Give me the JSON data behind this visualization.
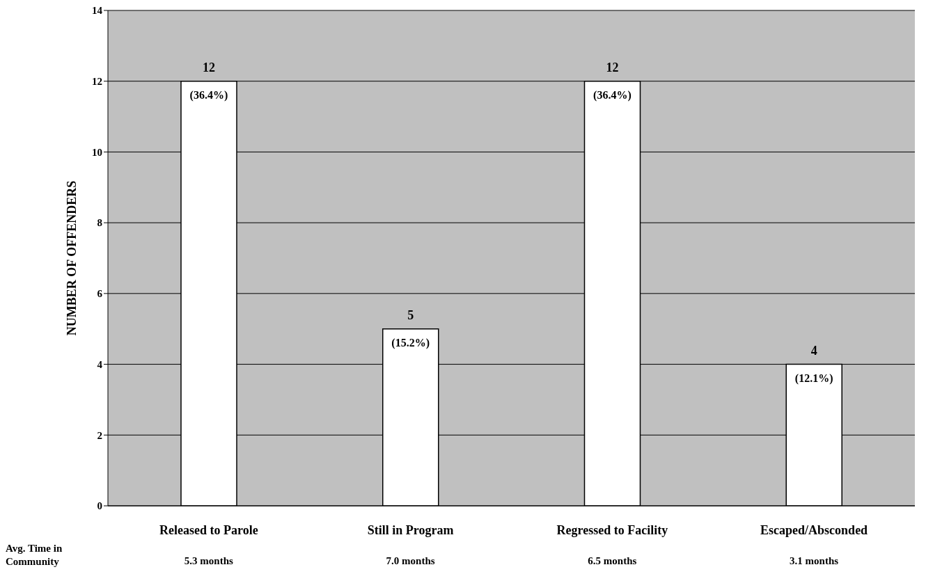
{
  "chart_data": {
    "type": "bar",
    "ylabel": "NUMBER OF OFFENDERS",
    "categories": [
      "Released to Parole",
      "Still in Program",
      "Regressed to Facility",
      "Escaped/Absconded"
    ],
    "values": [
      12,
      5,
      12,
      4
    ],
    "color": "#ffffff",
    "ylim": [
      0,
      14
    ],
    "yticks": [
      0,
      2,
      4,
      6,
      8,
      10,
      12,
      14
    ],
    "grid": "y",
    "data_labels": true,
    "annotations": [
      {
        "text": "(36.4%)",
        "x": "Released to Parole",
        "y": 12
      },
      {
        "text": "(15.2%)",
        "x": "Still in Program",
        "y": 5
      },
      {
        "text": "(36.4%)",
        "x": "Regressed to Facility",
        "y": 12
      },
      {
        "text": "(12.1%)",
        "x": "Escaped/Absconded",
        "y": 4
      },
      "Avg. Time in Community",
      "5.3 months",
      "7.0 months",
      "6.5 months",
      "3.1 months"
    ]
  }
}
